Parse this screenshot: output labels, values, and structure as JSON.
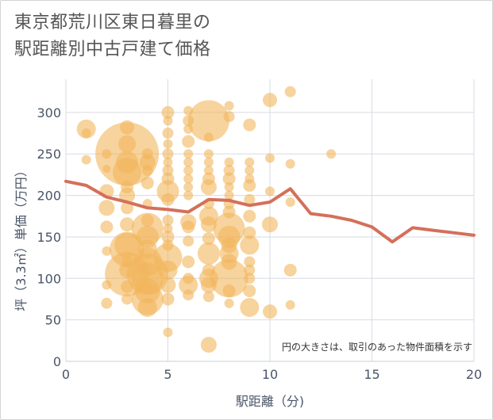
{
  "title_lines": [
    "東京都荒川区東日暮里の",
    "駅距離別中古戸建て価格"
  ],
  "chart_data": {
    "type": "scatter",
    "xlabel": "駅距離（分)",
    "ylabel": "坪（3.3㎡）単価（万円）",
    "note": "円の大きさは、取引のあった物件面積を示す",
    "xlim": [
      0,
      20
    ],
    "ylim": [
      0,
      340
    ],
    "x_ticks": [
      0,
      5,
      10,
      15,
      20
    ],
    "y_ticks": [
      0,
      50,
      100,
      150,
      200,
      250,
      300
    ],
    "grid": true,
    "colors": {
      "bubble": "#f2b65c",
      "line": "#d4705a",
      "grid": "#d6dbe3",
      "axis_text": "#4a5568"
    },
    "bubbles": [
      {
        "x": 1,
        "y": 280,
        "s": 12
      },
      {
        "x": 1,
        "y": 275,
        "s": 6
      },
      {
        "x": 1,
        "y": 243,
        "s": 6
      },
      {
        "x": 2,
        "y": 250,
        "s": 6
      },
      {
        "x": 2,
        "y": 232,
        "s": 5
      },
      {
        "x": 2,
        "y": 205,
        "s": 9
      },
      {
        "x": 2,
        "y": 185,
        "s": 10
      },
      {
        "x": 2,
        "y": 162,
        "s": 8
      },
      {
        "x": 2,
        "y": 133,
        "s": 6
      },
      {
        "x": 2,
        "y": 92,
        "s": 6
      },
      {
        "x": 2,
        "y": 70,
        "s": 7
      },
      {
        "x": 3,
        "y": 282,
        "s": 9
      },
      {
        "x": 3,
        "y": 262,
        "s": 11
      },
      {
        "x": 3,
        "y": 250,
        "s": 40
      },
      {
        "x": 3,
        "y": 240,
        "s": 14
      },
      {
        "x": 3,
        "y": 228,
        "s": 18
      },
      {
        "x": 3,
        "y": 210,
        "s": 8
      },
      {
        "x": 3,
        "y": 200,
        "s": 10
      },
      {
        "x": 3,
        "y": 185,
        "s": 8
      },
      {
        "x": 3,
        "y": 165,
        "s": 9
      },
      {
        "x": 3,
        "y": 140,
        "s": 16
      },
      {
        "x": 3,
        "y": 135,
        "s": 22
      },
      {
        "x": 3,
        "y": 120,
        "s": 7
      },
      {
        "x": 3,
        "y": 110,
        "s": 10
      },
      {
        "x": 3,
        "y": 105,
        "s": 28
      },
      {
        "x": 3,
        "y": 90,
        "s": 8
      },
      {
        "x": 3,
        "y": 75,
        "s": 7
      },
      {
        "x": 4,
        "y": 250,
        "s": 7
      },
      {
        "x": 4,
        "y": 240,
        "s": 10
      },
      {
        "x": 4,
        "y": 230,
        "s": 7
      },
      {
        "x": 4,
        "y": 215,
        "s": 8
      },
      {
        "x": 4,
        "y": 190,
        "s": 6
      },
      {
        "x": 4,
        "y": 170,
        "s": 8
      },
      {
        "x": 4,
        "y": 160,
        "s": 20
      },
      {
        "x": 4,
        "y": 150,
        "s": 14
      },
      {
        "x": 4,
        "y": 135,
        "s": 12
      },
      {
        "x": 4,
        "y": 120,
        "s": 18
      },
      {
        "x": 4,
        "y": 105,
        "s": 26
      },
      {
        "x": 4,
        "y": 100,
        "s": 20
      },
      {
        "x": 4,
        "y": 85,
        "s": 16
      },
      {
        "x": 4,
        "y": 75,
        "s": 20
      },
      {
        "x": 4,
        "y": 65,
        "s": 12
      },
      {
        "x": 5,
        "y": 300,
        "s": 8
      },
      {
        "x": 5,
        "y": 290,
        "s": 6
      },
      {
        "x": 5,
        "y": 275,
        "s": 7
      },
      {
        "x": 5,
        "y": 262,
        "s": 6
      },
      {
        "x": 5,
        "y": 250,
        "s": 7
      },
      {
        "x": 5,
        "y": 240,
        "s": 6
      },
      {
        "x": 5,
        "y": 230,
        "s": 7
      },
      {
        "x": 5,
        "y": 220,
        "s": 8
      },
      {
        "x": 5,
        "y": 205,
        "s": 14
      },
      {
        "x": 5,
        "y": 195,
        "s": 8
      },
      {
        "x": 5,
        "y": 170,
        "s": 7
      },
      {
        "x": 5,
        "y": 160,
        "s": 6
      },
      {
        "x": 5,
        "y": 150,
        "s": 8
      },
      {
        "x": 5,
        "y": 140,
        "s": 7
      },
      {
        "x": 5,
        "y": 125,
        "s": 18
      },
      {
        "x": 5,
        "y": 110,
        "s": 12
      },
      {
        "x": 5,
        "y": 92,
        "s": 10
      },
      {
        "x": 5,
        "y": 75,
        "s": 8
      },
      {
        "x": 5,
        "y": 35,
        "s": 6
      },
      {
        "x": 6,
        "y": 302,
        "s": 6
      },
      {
        "x": 6,
        "y": 290,
        "s": 7
      },
      {
        "x": 6,
        "y": 280,
        "s": 6
      },
      {
        "x": 6,
        "y": 265,
        "s": 8
      },
      {
        "x": 6,
        "y": 250,
        "s": 6
      },
      {
        "x": 6,
        "y": 240,
        "s": 6
      },
      {
        "x": 6,
        "y": 230,
        "s": 6
      },
      {
        "x": 6,
        "y": 220,
        "s": 6
      },
      {
        "x": 6,
        "y": 210,
        "s": 6
      },
      {
        "x": 6,
        "y": 200,
        "s": 6
      },
      {
        "x": 6,
        "y": 168,
        "s": 10
      },
      {
        "x": 6,
        "y": 162,
        "s": 8
      },
      {
        "x": 6,
        "y": 145,
        "s": 7
      },
      {
        "x": 6,
        "y": 120,
        "s": 8
      },
      {
        "x": 6,
        "y": 100,
        "s": 7
      },
      {
        "x": 6,
        "y": 92,
        "s": 12
      },
      {
        "x": 6,
        "y": 80,
        "s": 7
      },
      {
        "x": 7,
        "y": 290,
        "s": 26
      },
      {
        "x": 7,
        "y": 270,
        "s": 6
      },
      {
        "x": 7,
        "y": 250,
        "s": 6
      },
      {
        "x": 7,
        "y": 240,
        "s": 6
      },
      {
        "x": 7,
        "y": 230,
        "s": 6
      },
      {
        "x": 7,
        "y": 220,
        "s": 8
      },
      {
        "x": 7,
        "y": 210,
        "s": 10
      },
      {
        "x": 7,
        "y": 190,
        "s": 7
      },
      {
        "x": 7,
        "y": 175,
        "s": 12
      },
      {
        "x": 7,
        "y": 165,
        "s": 10
      },
      {
        "x": 7,
        "y": 148,
        "s": 8
      },
      {
        "x": 7,
        "y": 130,
        "s": 14
      },
      {
        "x": 7,
        "y": 110,
        "s": 8
      },
      {
        "x": 7,
        "y": 100,
        "s": 12
      },
      {
        "x": 7,
        "y": 92,
        "s": 10
      },
      {
        "x": 7,
        "y": 78,
        "s": 7
      },
      {
        "x": 7,
        "y": 20,
        "s": 10
      },
      {
        "x": 8,
        "y": 308,
        "s": 6
      },
      {
        "x": 8,
        "y": 295,
        "s": 7
      },
      {
        "x": 8,
        "y": 240,
        "s": 6
      },
      {
        "x": 8,
        "y": 230,
        "s": 7
      },
      {
        "x": 8,
        "y": 220,
        "s": 8
      },
      {
        "x": 8,
        "y": 210,
        "s": 6
      },
      {
        "x": 8,
        "y": 200,
        "s": 6
      },
      {
        "x": 8,
        "y": 190,
        "s": 7
      },
      {
        "x": 8,
        "y": 180,
        "s": 8
      },
      {
        "x": 8,
        "y": 160,
        "s": 20
      },
      {
        "x": 8,
        "y": 150,
        "s": 14
      },
      {
        "x": 8,
        "y": 140,
        "s": 10
      },
      {
        "x": 8,
        "y": 130,
        "s": 12
      },
      {
        "x": 8,
        "y": 120,
        "s": 10
      },
      {
        "x": 8,
        "y": 100,
        "s": 24
      },
      {
        "x": 8,
        "y": 85,
        "s": 8
      },
      {
        "x": 8,
        "y": 70,
        "s": 6
      },
      {
        "x": 9,
        "y": 285,
        "s": 8
      },
      {
        "x": 9,
        "y": 240,
        "s": 6
      },
      {
        "x": 9,
        "y": 230,
        "s": 6
      },
      {
        "x": 9,
        "y": 220,
        "s": 6
      },
      {
        "x": 9,
        "y": 212,
        "s": 8
      },
      {
        "x": 9,
        "y": 195,
        "s": 7
      },
      {
        "x": 9,
        "y": 175,
        "s": 8
      },
      {
        "x": 9,
        "y": 155,
        "s": 8
      },
      {
        "x": 9,
        "y": 140,
        "s": 12
      },
      {
        "x": 9,
        "y": 120,
        "s": 7
      },
      {
        "x": 9,
        "y": 110,
        "s": 7
      },
      {
        "x": 9,
        "y": 100,
        "s": 7
      },
      {
        "x": 9,
        "y": 85,
        "s": 8
      },
      {
        "x": 9,
        "y": 65,
        "s": 12
      },
      {
        "x": 10,
        "y": 315,
        "s": 9
      },
      {
        "x": 10,
        "y": 245,
        "s": 6
      },
      {
        "x": 10,
        "y": 205,
        "s": 6
      },
      {
        "x": 10,
        "y": 165,
        "s": 10
      },
      {
        "x": 10,
        "y": 60,
        "s": 9
      },
      {
        "x": 11,
        "y": 325,
        "s": 7
      },
      {
        "x": 11,
        "y": 238,
        "s": 6
      },
      {
        "x": 11,
        "y": 192,
        "s": 6
      },
      {
        "x": 11,
        "y": 110,
        "s": 8
      },
      {
        "x": 11,
        "y": 68,
        "s": 6
      },
      {
        "x": 13,
        "y": 250,
        "s": 6
      }
    ],
    "series": [
      {
        "x": [
          0,
          1,
          2,
          3,
          4,
          5,
          6,
          7,
          8,
          9,
          10,
          11,
          12,
          13,
          14,
          15,
          16,
          17,
          18,
          19,
          20
        ],
        "values": [
          217,
          212,
          198,
          192,
          185,
          183,
          180,
          195,
          194,
          188,
          192,
          208,
          178,
          175,
          170,
          162,
          144,
          161,
          158,
          155,
          152
        ]
      }
    ]
  }
}
